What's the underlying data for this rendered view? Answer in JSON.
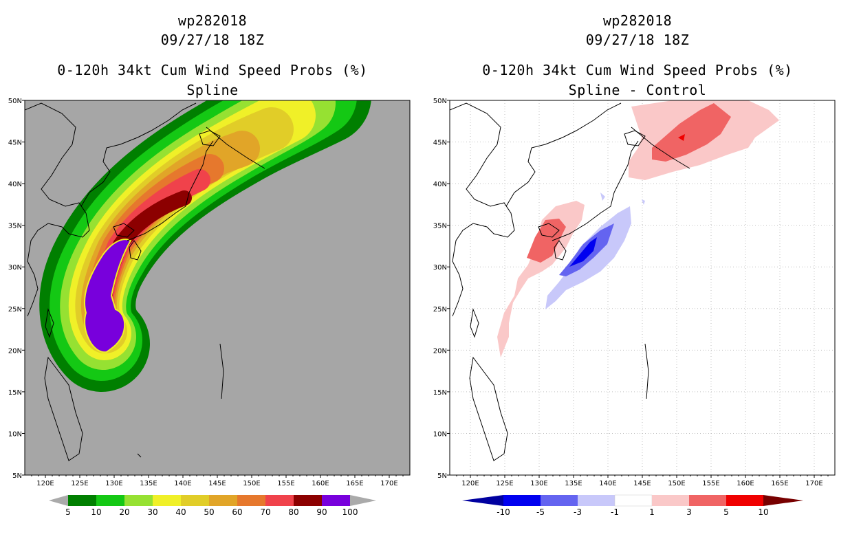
{
  "panels": [
    {
      "storm_id": "wp282018",
      "datetime": "09/27/18 18Z",
      "title": "0-120h 34kt Cum Wind Speed Probs (%)",
      "subtitle": "Spline",
      "background": "#a6a6a6",
      "colorbar": {
        "labels": [
          "5",
          "10",
          "20",
          "30",
          "40",
          "50",
          "60",
          "70",
          "80",
          "90",
          "100"
        ],
        "colors": [
          "#007f00",
          "#14c814",
          "#96e132",
          "#f0f028",
          "#e1cd28",
          "#e1a528",
          "#e6782d",
          "#f0424b",
          "#8c0000",
          "#7800dc"
        ],
        "end_color": "#aaaaaa"
      }
    },
    {
      "storm_id": "wp282018",
      "datetime": "09/27/18 18Z",
      "title": "0-120h 34kt Cum Wind Speed Probs (%)",
      "subtitle": "Spline - Control",
      "background": "#ffffff",
      "colorbar": {
        "labels": [
          "-10",
          "-5",
          "-3",
          "-1",
          "1",
          "3",
          "5",
          "10"
        ],
        "colors": [
          "#0000f0",
          "#6464f0",
          "#c8c8fa",
          "#ffffff",
          "#fac8c8",
          "#f06464",
          "#f00000"
        ],
        "end_left": "#0000a0",
        "end_right": "#780000"
      }
    }
  ],
  "map_axes": {
    "lat_labels": [
      "50N",
      "45N",
      "40N",
      "35N",
      "30N",
      "25N",
      "20N",
      "15N",
      "10N",
      "5N"
    ],
    "lon_labels": [
      "120E",
      "125E",
      "130E",
      "135E",
      "140E",
      "145E",
      "150E",
      "155E",
      "160E",
      "165E",
      "170E"
    ]
  }
}
